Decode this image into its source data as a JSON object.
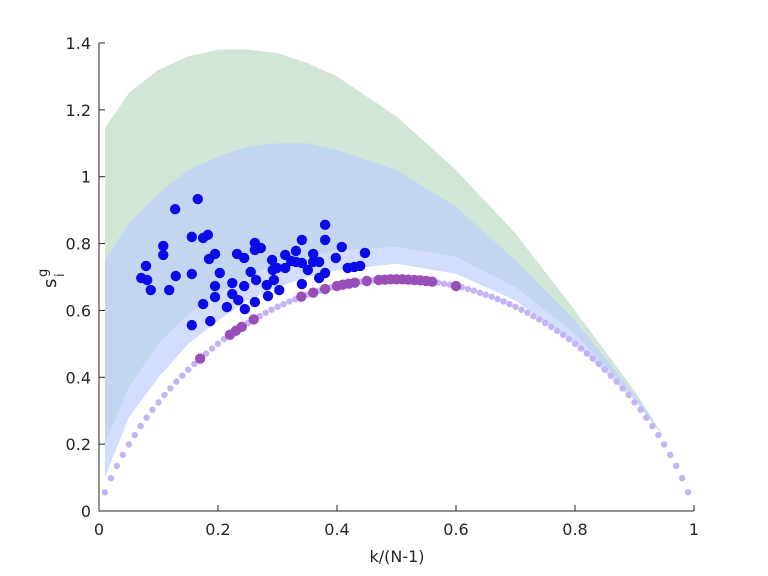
{
  "chart_data": {
    "type": "scatter",
    "xlabel": "k/(N-1)",
    "ylabel": {
      "text": "s",
      "superscript": "g",
      "subscript": "i"
    },
    "xlim": [
      0,
      1
    ],
    "xticks": [
      0,
      0.2,
      0.4,
      0.6,
      0.8,
      1
    ],
    "ylim": [
      0,
      1.4
    ],
    "yticks": [
      0,
      0.2,
      0.4,
      0.6,
      0.8,
      1,
      1.2,
      1.4
    ],
    "grid": false,
    "areas": [
      {
        "color": "#d2e6d7",
        "x": [
          0.01,
          0.05,
          0.1,
          0.15,
          0.2,
          0.25,
          0.3,
          0.35,
          0.4,
          0.5,
          0.6,
          0.7,
          0.8,
          0.9,
          0.95
        ],
        "upper": [
          1.146,
          1.25,
          1.32,
          1.36,
          1.38,
          1.38,
          1.37,
          1.34,
          1.3,
          1.18,
          1.02,
          0.83,
          0.6,
          0.36,
          0.22
        ],
        "lower": [
          0.1,
          0.28,
          0.4,
          0.5,
          0.57,
          0.63,
          0.67,
          0.7,
          0.72,
          0.74,
          0.71,
          0.63,
          0.5,
          0.33,
          0.22
        ]
      },
      {
        "color": "#c3d6ef",
        "x": [
          0.01,
          0.05,
          0.1,
          0.15,
          0.2,
          0.25,
          0.3,
          0.35,
          0.4,
          0.5,
          0.6,
          0.7,
          0.8,
          0.9,
          0.95
        ],
        "upper": [
          0.75,
          0.86,
          0.95,
          1.02,
          1.06,
          1.09,
          1.1,
          1.1,
          1.08,
          1.02,
          0.91,
          0.75,
          0.57,
          0.35,
          0.22
        ],
        "lower": [
          0.2,
          0.37,
          0.5,
          0.59,
          0.65,
          0.7,
          0.74,
          0.76,
          0.78,
          0.79,
          0.76,
          0.67,
          0.53,
          0.34,
          0.22
        ]
      },
      {
        "color": "#d3ddff",
        "x": [
          0.01,
          0.05,
          0.1,
          0.15,
          0.2,
          0.25,
          0.3,
          0.35,
          0.4,
          0.5,
          0.6,
          0.7,
          0.8,
          0.9,
          0.95
        ],
        "upper": [
          0.2,
          0.37,
          0.5,
          0.59,
          0.65,
          0.7,
          0.74,
          0.76,
          0.78,
          0.79,
          0.76,
          0.67,
          0.53,
          0.34,
          0.22
        ],
        "lower": [
          0.1,
          0.28,
          0.4,
          0.5,
          0.57,
          0.63,
          0.67,
          0.7,
          0.72,
          0.74,
          0.71,
          0.63,
          0.5,
          0.33,
          0.22
        ]
      }
    ],
    "series": [
      {
        "color": "#c4b3f5",
        "marker": "small",
        "x": [
          0.01,
          0.02,
          0.03,
          0.04,
          0.05,
          0.06,
          0.07,
          0.08,
          0.09,
          0.1,
          0.11,
          0.12,
          0.13,
          0.14,
          0.15,
          0.16,
          0.17,
          0.18,
          0.19,
          0.2,
          0.21,
          0.22,
          0.23,
          0.24,
          0.25,
          0.26,
          0.27,
          0.28,
          0.29,
          0.3,
          0.31,
          0.32,
          0.33,
          0.34,
          0.35,
          0.36,
          0.37,
          0.38,
          0.39,
          0.4,
          0.41,
          0.42,
          0.43,
          0.44,
          0.45,
          0.46,
          0.47,
          0.48,
          0.49,
          0.5,
          0.51,
          0.52,
          0.53,
          0.54,
          0.55,
          0.56,
          0.57,
          0.58,
          0.59,
          0.6,
          0.61,
          0.62,
          0.63,
          0.64,
          0.65,
          0.66,
          0.67,
          0.68,
          0.69,
          0.7,
          0.71,
          0.72,
          0.73,
          0.74,
          0.75,
          0.76,
          0.77,
          0.78,
          0.79,
          0.8,
          0.81,
          0.82,
          0.83,
          0.84,
          0.85,
          0.86,
          0.87,
          0.88,
          0.89,
          0.9,
          0.91,
          0.92,
          0.93,
          0.94,
          0.95,
          0.96,
          0.97,
          0.98,
          0.99
        ],
        "values": [
          0.056,
          0.098,
          0.135,
          0.168,
          0.199,
          0.227,
          0.254,
          0.279,
          0.303,
          0.325,
          0.347,
          0.367,
          0.387,
          0.405,
          0.423,
          0.44,
          0.456,
          0.471,
          0.486,
          0.5,
          0.514,
          0.527,
          0.539,
          0.551,
          0.562,
          0.573,
          0.583,
          0.593,
          0.602,
          0.611,
          0.619,
          0.627,
          0.634,
          0.641,
          0.647,
          0.653,
          0.659,
          0.664,
          0.669,
          0.673,
          0.677,
          0.68,
          0.683,
          0.686,
          0.688,
          0.69,
          0.691,
          0.692,
          0.693,
          0.693,
          0.693,
          0.692,
          0.691,
          0.69,
          0.688,
          0.686,
          0.683,
          0.68,
          0.677,
          0.673,
          0.669,
          0.664,
          0.659,
          0.653,
          0.647,
          0.641,
          0.634,
          0.627,
          0.619,
          0.611,
          0.602,
          0.593,
          0.583,
          0.573,
          0.562,
          0.551,
          0.539,
          0.527,
          0.514,
          0.5,
          0.486,
          0.471,
          0.456,
          0.44,
          0.423,
          0.405,
          0.387,
          0.367,
          0.347,
          0.325,
          0.303,
          0.279,
          0.254,
          0.227,
          0.199,
          0.168,
          0.135,
          0.098,
          0.056
        ]
      },
      {
        "color": "#9a4fb8",
        "marker": "large",
        "x": [
          0.17,
          0.22,
          0.23,
          0.24,
          0.26,
          0.34,
          0.36,
          0.38,
          0.4,
          0.41,
          0.42,
          0.43,
          0.45,
          0.47,
          0.48,
          0.49,
          0.5,
          0.51,
          0.52,
          0.53,
          0.54,
          0.55,
          0.56,
          0.6
        ],
        "values": [
          0.456,
          0.527,
          0.539,
          0.551,
          0.573,
          0.641,
          0.653,
          0.664,
          0.673,
          0.677,
          0.68,
          0.683,
          0.688,
          0.691,
          0.692,
          0.693,
          0.693,
          0.693,
          0.692,
          0.691,
          0.69,
          0.688,
          0.686,
          0.673
        ]
      },
      {
        "color": "#0b0bea",
        "marker": "large",
        "x": [
          0.071,
          0.079,
          0.087,
          0.081,
          0.108,
          0.108,
          0.118,
          0.128,
          0.129,
          0.156,
          0.156,
          0.156,
          0.166,
          0.175,
          0.175,
          0.183,
          0.187,
          0.185,
          0.195,
          0.195,
          0.195,
          0.203,
          0.215,
          0.224,
          0.224,
          0.232,
          0.234,
          0.244,
          0.244,
          0.245,
          0.255,
          0.262,
          0.264,
          0.262,
          0.262,
          0.272,
          0.282,
          0.284,
          0.291,
          0.292,
          0.294,
          0.299,
          0.303,
          0.313,
          0.313,
          0.323,
          0.331,
          0.331,
          0.341,
          0.341,
          0.341,
          0.351,
          0.36,
          0.36,
          0.37,
          0.37,
          0.38,
          0.38,
          0.38,
          0.398,
          0.408,
          0.418,
          0.429,
          0.439,
          0.447
        ],
        "values": [
          0.697,
          0.733,
          0.661,
          0.691,
          0.793,
          0.766,
          0.661,
          0.903,
          0.703,
          0.82,
          0.709,
          0.556,
          0.933,
          0.817,
          0.619,
          0.826,
          0.568,
          0.754,
          0.769,
          0.673,
          0.64,
          0.712,
          0.61,
          0.682,
          0.649,
          0.769,
          0.631,
          0.757,
          0.673,
          0.604,
          0.715,
          0.802,
          0.691,
          0.781,
          0.625,
          0.787,
          0.676,
          0.643,
          0.751,
          0.721,
          0.691,
          0.727,
          0.661,
          0.727,
          0.766,
          0.748,
          0.745,
          0.778,
          0.742,
          0.679,
          0.811,
          0.721,
          0.745,
          0.769,
          0.697,
          0.745,
          0.811,
          0.856,
          0.712,
          0.757,
          0.79,
          0.727,
          0.73,
          0.733,
          0.772
        ]
      }
    ]
  }
}
